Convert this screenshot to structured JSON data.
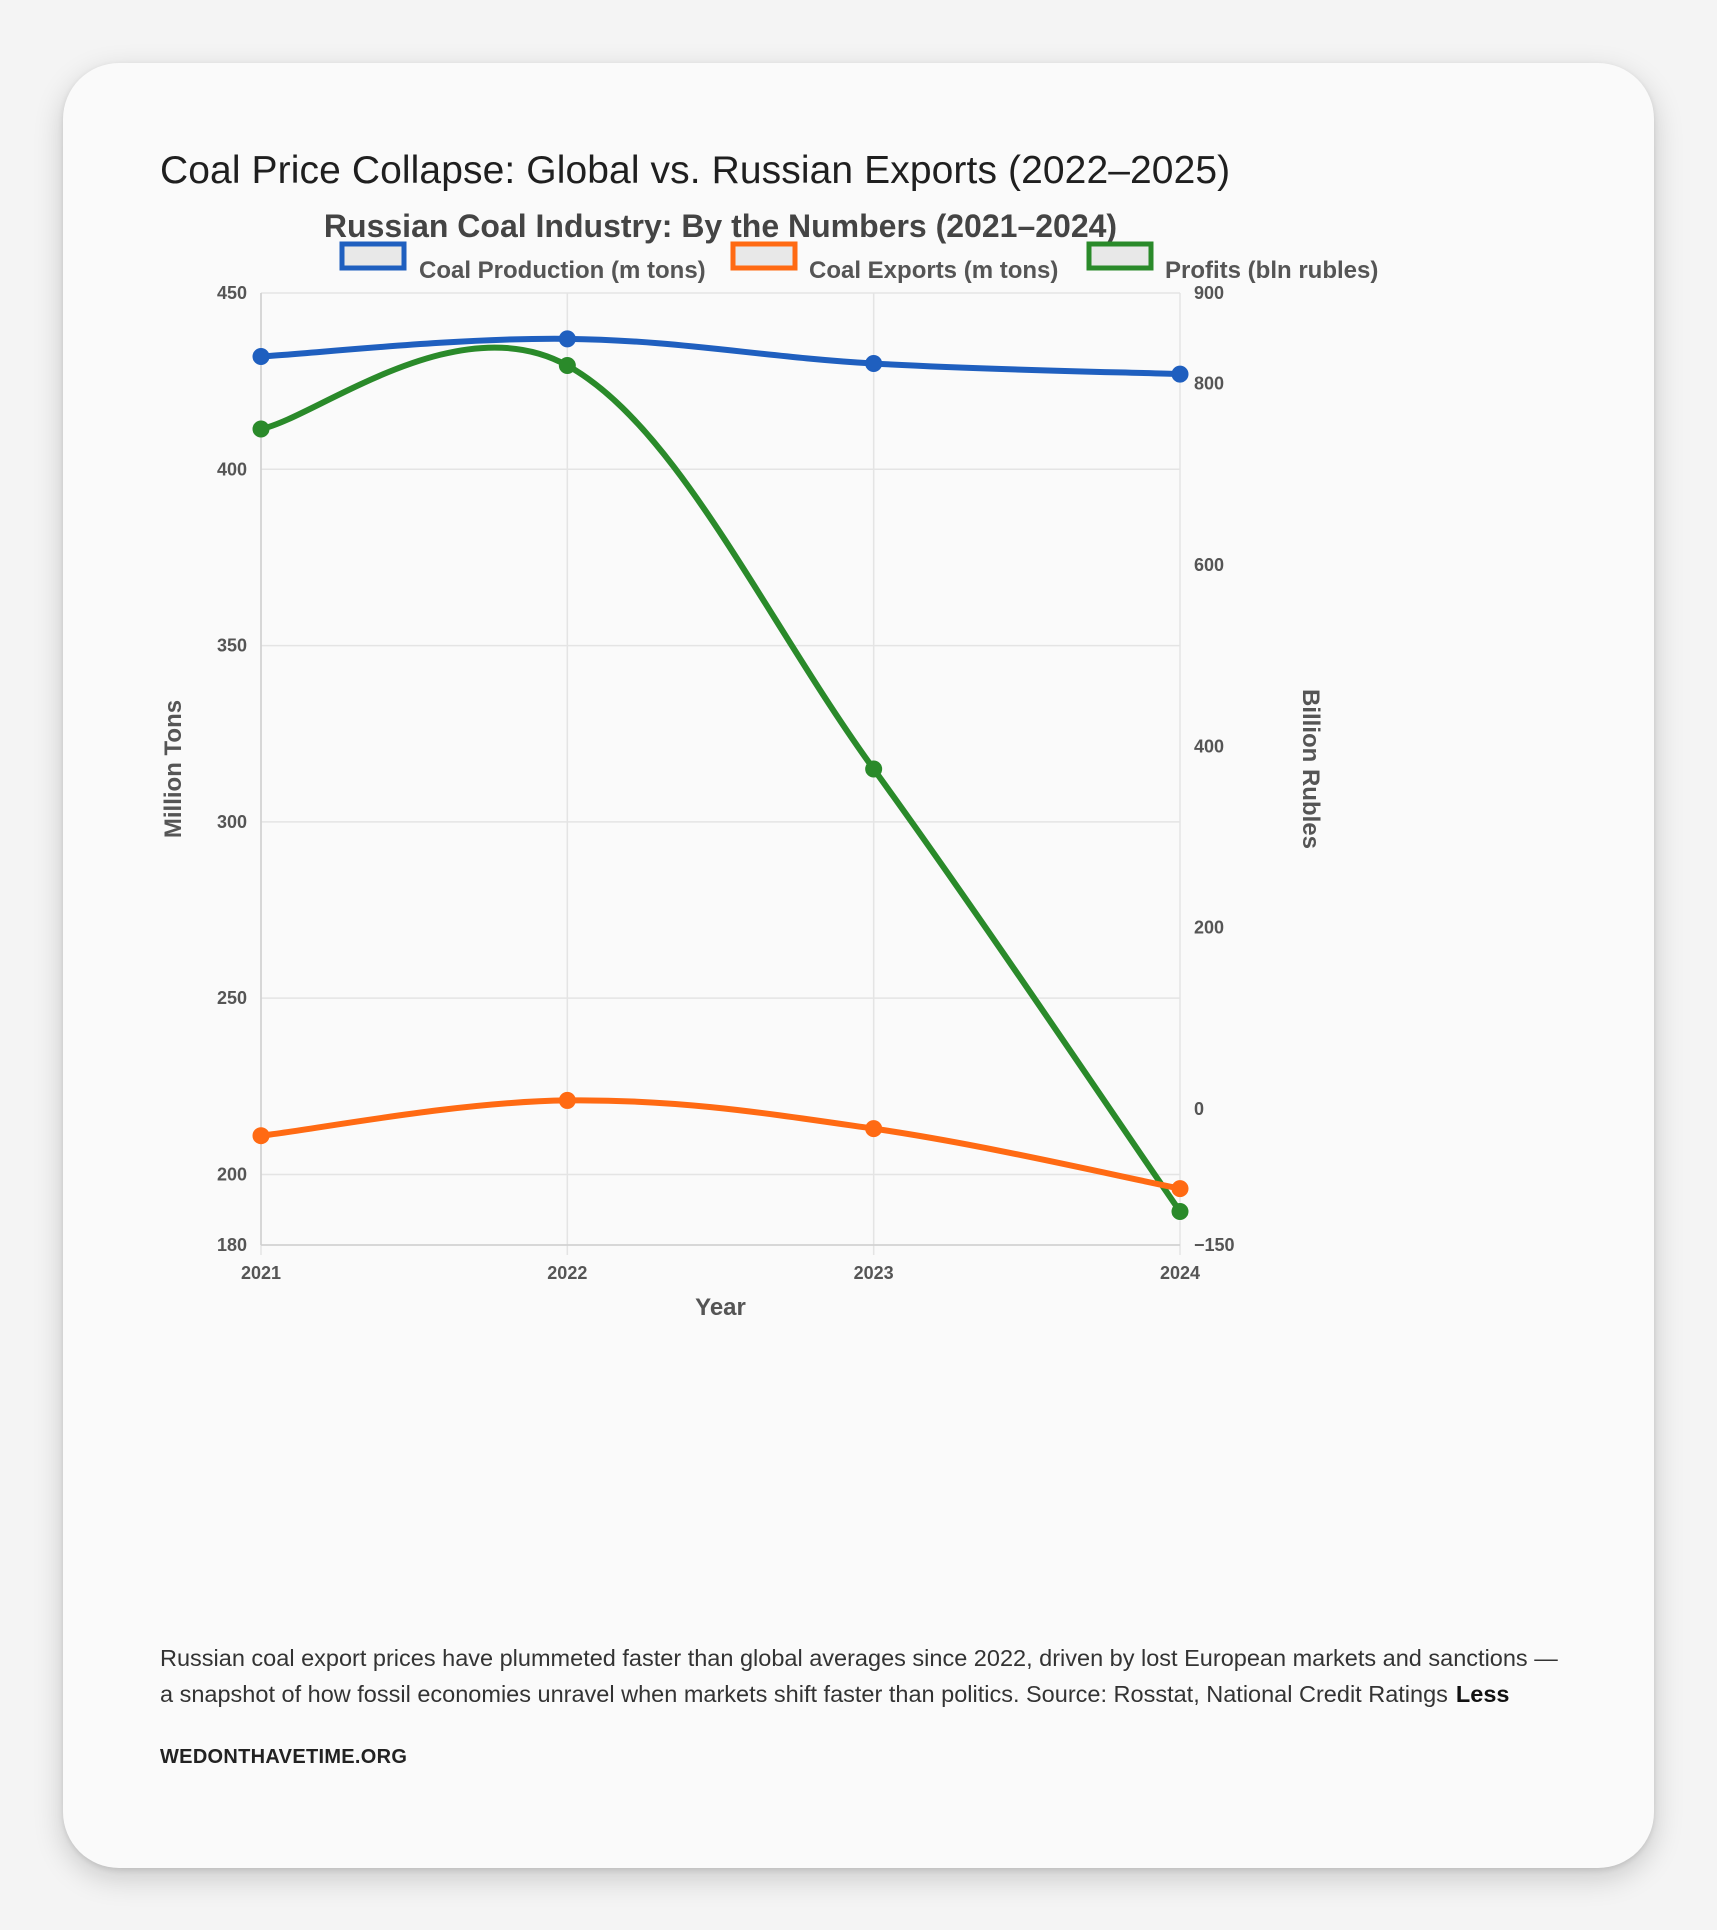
{
  "card": {
    "title": "Coal Price Collapse: Global vs. Russian Exports (2022–2025)",
    "caption": "Russian coal export prices have plummeted faster than global averages since 2022, driven by lost European markets and sanctions — a snapshot of how fossil economies unravel when markets shift faster than politics. Source: Rosstat, National Credit Ratings",
    "less_label": "Less",
    "source_link": "WEDONTHAVETIME.ORG"
  },
  "chart_data": {
    "type": "line",
    "title": "Russian Coal Industry: By the Numbers (2021–2024)",
    "xlabel": "Year",
    "ylabel_left": "Million Tons",
    "ylabel_right": "Billion Rubles",
    "categories": [
      "2021",
      "2022",
      "2023",
      "2024"
    ],
    "ylim_left": [
      180,
      450
    ],
    "yticks_left": [
      450,
      400,
      350,
      300,
      250,
      200,
      180
    ],
    "ylim_right": [
      -150,
      900
    ],
    "yticks_right": [
      900,
      800,
      600,
      400,
      200,
      0,
      -150
    ],
    "yticks_right_labels": [
      "900",
      "800",
      "600",
      "400",
      "200",
      "0",
      "−150"
    ],
    "grid": true,
    "legend_position": "top",
    "series": [
      {
        "name": "Coal Production (m tons)",
        "axis": "left",
        "color": "#1f5fbf",
        "values": [
          432,
          437,
          430,
          427
        ]
      },
      {
        "name": "Coal Exports (m tons)",
        "axis": "left",
        "color": "#ff6a13",
        "values": [
          211,
          221,
          213,
          196
        ]
      },
      {
        "name": "Profits (bln rubles)",
        "axis": "right",
        "color": "#2a8a2a",
        "values": [
          750,
          820,
          375,
          -113
        ]
      }
    ]
  }
}
